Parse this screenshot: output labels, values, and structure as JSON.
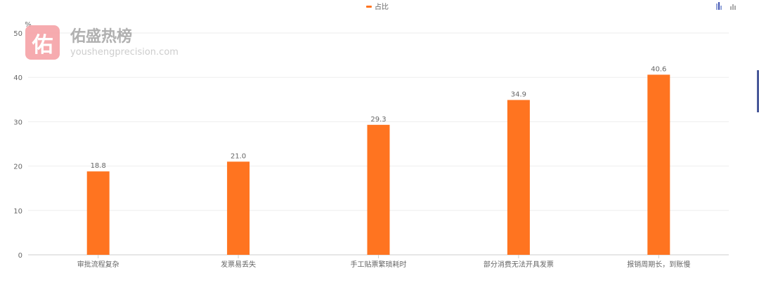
{
  "chart_data": {
    "type": "bar",
    "categories": [
      "审批流程复杂",
      "发票易丢失",
      "手工贴票繁琐耗时",
      "部分消费无法开具发票",
      "报销周期长，到账慢"
    ],
    "series": [
      {
        "name": "占比",
        "values": [
          18.8,
          21.0,
          29.3,
          34.9,
          40.6
        ],
        "color": "#ff7420"
      }
    ],
    "yunit": "%",
    "ylim": [
      0,
      50
    ],
    "yticks": [
      0,
      10,
      20,
      30,
      40,
      50
    ],
    "grid": true,
    "legend": "top-center",
    "data_labels": [
      "18.8",
      "21.0",
      "29.3",
      "34.9",
      "40.6"
    ]
  },
  "legend": {
    "label": "占比"
  },
  "toolbar": {
    "icons": [
      "bar-chart-icon",
      "stacked-bar-icon"
    ]
  },
  "watermark": {
    "logo_char": "佑",
    "title": "佑盛热榜",
    "url": "youshengprecision.com"
  }
}
